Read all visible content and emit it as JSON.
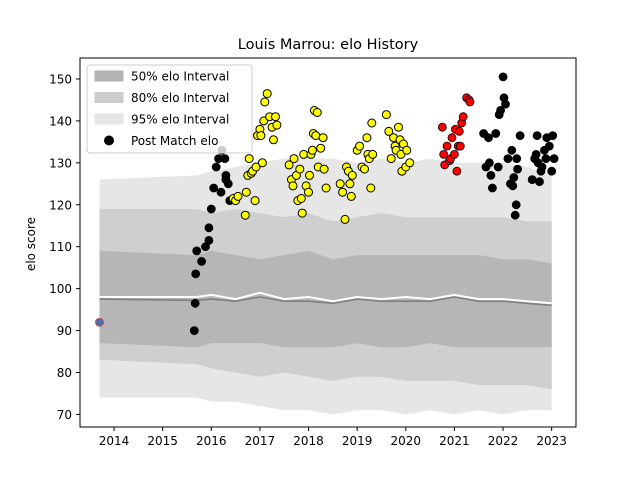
{
  "chart_data": {
    "type": "scatter",
    "title": "Louis Marrou: elo History",
    "xlabel": "",
    "ylabel": "elo score",
    "xlim": [
      2013.3,
      2023.5
    ],
    "ylim": [
      67,
      155
    ],
    "x_ticks": [
      2014,
      2015,
      2016,
      2017,
      2018,
      2019,
      2020,
      2021,
      2022,
      2023
    ],
    "y_ticks": [
      70,
      80,
      90,
      100,
      110,
      120,
      130,
      140,
      150
    ],
    "legend": {
      "position": "top-left",
      "entries": [
        {
          "label": "50% elo Interval",
          "kind": "band",
          "color": "#b3b3b3"
        },
        {
          "label": "80% elo Interval",
          "kind": "band",
          "color": "#cccccc"
        },
        {
          "label": "95% elo Interval",
          "kind": "band",
          "color": "#e6e6e6"
        },
        {
          "label": "Post Match elo",
          "kind": "marker",
          "color": "#000000"
        }
      ]
    },
    "bands": {
      "x": [
        2013.7,
        2015.7,
        2016.0,
        2016.5,
        2017.0,
        2017.5,
        2018.0,
        2018.5,
        2019.0,
        2019.5,
        2020.0,
        2020.5,
        2021.0,
        2021.5,
        2022.0,
        2022.5,
        2023.0
      ],
      "p95_upper": [
        126,
        127,
        128,
        129,
        130,
        131,
        131,
        131,
        130,
        131,
        130,
        131,
        130,
        130,
        130,
        129,
        127
      ],
      "p80_upper": [
        119,
        119,
        118,
        119,
        118,
        117,
        118,
        116,
        117,
        118,
        117,
        117,
        117,
        117,
        117,
        116,
        116
      ],
      "p50_upper": [
        109,
        108,
        109,
        108,
        107,
        108,
        109,
        107,
        108,
        108,
        108,
        108,
        108,
        108,
        107,
        107,
        106
      ],
      "median": [
        97.5,
        97.2,
        97.5,
        97.0,
        98.0,
        97.0,
        97.0,
        96.5,
        97.5,
        97.0,
        97.0,
        97.0,
        98.0,
        97.0,
        97.0,
        96.5,
        96.0
      ],
      "p50_lower": [
        87,
        86,
        87,
        87,
        87,
        86,
        86,
        86,
        87,
        86,
        86,
        87,
        86,
        86,
        86,
        86,
        86
      ],
      "p80_lower": [
        83,
        82,
        81,
        80,
        79,
        80,
        79,
        78,
        79,
        79,
        78,
        78,
        78,
        77,
        77,
        77,
        76
      ],
      "p95_lower": [
        74,
        74,
        73,
        73,
        72,
        71,
        71,
        70,
        71,
        71,
        70,
        71,
        70,
        71,
        70,
        71,
        71
      ],
      "mean_line": [
        98,
        98,
        98.5,
        97.5,
        99,
        97.5,
        98,
        97,
        98,
        97.5,
        98,
        97.5,
        98.5,
        97.5,
        97.5,
        97,
        96.5
      ]
    },
    "series": [
      {
        "color": "#000000",
        "points": [
          [
            2015.65,
            90
          ],
          [
            2015.67,
            96.5
          ],
          [
            2015.68,
            103.5
          ],
          [
            2015.7,
            109
          ],
          [
            2015.8,
            106.5
          ],
          [
            2015.88,
            110
          ],
          [
            2015.95,
            111.5
          ],
          [
            2015.95,
            114.5
          ],
          [
            2016.0,
            119
          ],
          [
            2016.05,
            124
          ],
          [
            2016.1,
            129
          ],
          [
            2016.15,
            131
          ],
          [
            2016.2,
            123
          ],
          [
            2016.22,
            133
          ],
          [
            2016.3,
            126
          ],
          [
            2016.35,
            125
          ],
          [
            2016.38,
            121
          ],
          [
            2016.28,
            131
          ],
          [
            2016.3,
            127
          ],
          [
            2021.6,
            137
          ],
          [
            2021.65,
            129
          ],
          [
            2021.7,
            136
          ],
          [
            2021.72,
            130
          ],
          [
            2021.75,
            127
          ],
          [
            2021.78,
            124
          ],
          [
            2021.85,
            137
          ],
          [
            2021.9,
            129
          ],
          [
            2021.92,
            141.5
          ],
          [
            2021.95,
            142.5
          ],
          [
            2022.0,
            150.5
          ],
          [
            2022.02,
            145.5
          ],
          [
            2022.05,
            144
          ],
          [
            2022.1,
            131
          ],
          [
            2022.15,
            125
          ],
          [
            2022.18,
            133
          ],
          [
            2022.22,
            126.5
          ],
          [
            2022.25,
            117.5
          ],
          [
            2022.27,
            120
          ],
          [
            2022.28,
            131
          ],
          [
            2022.3,
            128.5
          ],
          [
            2022.35,
            136.5
          ],
          [
            2022.2,
            124.5
          ],
          [
            2022.6,
            126
          ],
          [
            2022.65,
            131
          ],
          [
            2022.68,
            132
          ],
          [
            2022.7,
            136.5
          ],
          [
            2022.75,
            125.5
          ],
          [
            2022.78,
            128
          ],
          [
            2022.8,
            129
          ],
          [
            2022.85,
            133
          ],
          [
            2022.88,
            131
          ],
          [
            2022.9,
            136
          ],
          [
            2022.95,
            134
          ],
          [
            2023.0,
            128
          ],
          [
            2023.02,
            136.5
          ],
          [
            2023.05,
            131
          ],
          [
            2022.72,
            130
          ]
        ]
      },
      {
        "color": "#ffff00",
        "points": [
          [
            2016.45,
            121.5
          ],
          [
            2016.5,
            121
          ],
          [
            2016.55,
            122
          ],
          [
            2016.7,
            117.5
          ],
          [
            2016.72,
            123
          ],
          [
            2016.75,
            127
          ],
          [
            2016.78,
            131
          ],
          [
            2016.82,
            127.5
          ],
          [
            2016.85,
            128
          ],
          [
            2016.9,
            121
          ],
          [
            2016.92,
            129
          ],
          [
            2016.95,
            136.5
          ],
          [
            2017.0,
            138
          ],
          [
            2017.02,
            136.5
          ],
          [
            2017.05,
            130
          ],
          [
            2017.08,
            140
          ],
          [
            2017.1,
            144.5
          ],
          [
            2017.15,
            146.5
          ],
          [
            2017.2,
            141
          ],
          [
            2017.25,
            138.5
          ],
          [
            2017.28,
            135.5
          ],
          [
            2017.32,
            141
          ],
          [
            2017.35,
            139
          ],
          [
            2017.6,
            129.5
          ],
          [
            2017.65,
            126
          ],
          [
            2017.68,
            124.5
          ],
          [
            2017.7,
            131
          ],
          [
            2017.75,
            127
          ],
          [
            2017.78,
            121
          ],
          [
            2017.82,
            128.5
          ],
          [
            2017.85,
            121.5
          ],
          [
            2017.9,
            132
          ],
          [
            2017.95,
            124.5
          ],
          [
            2018.0,
            123
          ],
          [
            2018.02,
            127
          ],
          [
            2018.05,
            132
          ],
          [
            2018.08,
            133
          ],
          [
            2018.1,
            137
          ],
          [
            2018.12,
            142.5
          ],
          [
            2018.15,
            136.5
          ],
          [
            2018.18,
            142
          ],
          [
            2018.2,
            129
          ],
          [
            2018.25,
            133.5
          ],
          [
            2018.3,
            136
          ],
          [
            2018.32,
            128.5
          ],
          [
            2018.36,
            124
          ],
          [
            2017.87,
            118
          ],
          [
            2018.65,
            125
          ],
          [
            2018.7,
            123
          ],
          [
            2018.75,
            116.5
          ],
          [
            2018.78,
            129
          ],
          [
            2018.82,
            128
          ],
          [
            2018.85,
            125
          ],
          [
            2018.88,
            122
          ],
          [
            2018.9,
            127
          ],
          [
            2019.0,
            133
          ],
          [
            2019.05,
            134
          ],
          [
            2019.1,
            129
          ],
          [
            2019.15,
            128.5
          ],
          [
            2019.2,
            136
          ],
          [
            2019.22,
            132
          ],
          [
            2019.25,
            131
          ],
          [
            2019.28,
            124
          ],
          [
            2019.3,
            139.5
          ],
          [
            2019.32,
            132
          ],
          [
            2019.6,
            141.5
          ],
          [
            2019.65,
            137.5
          ],
          [
            2019.7,
            131
          ],
          [
            2019.75,
            136
          ],
          [
            2019.78,
            134
          ],
          [
            2019.8,
            133
          ],
          [
            2019.85,
            138.5
          ],
          [
            2019.88,
            135.5
          ],
          [
            2019.9,
            132
          ],
          [
            2019.92,
            128
          ],
          [
            2019.95,
            134.5
          ],
          [
            2020.0,
            129
          ],
          [
            2020.02,
            133
          ],
          [
            2020.08,
            130
          ]
        ]
      },
      {
        "color": "#ff0000",
        "points": [
          [
            2020.75,
            138.5
          ],
          [
            2020.78,
            132
          ],
          [
            2020.8,
            129.5
          ],
          [
            2020.85,
            134
          ],
          [
            2020.9,
            130.5
          ],
          [
            2020.92,
            131
          ],
          [
            2020.95,
            136
          ],
          [
            2021.0,
            132
          ],
          [
            2021.02,
            138
          ],
          [
            2021.05,
            128
          ],
          [
            2021.08,
            134
          ],
          [
            2021.1,
            137.5
          ],
          [
            2021.12,
            134
          ],
          [
            2021.15,
            139.5
          ],
          [
            2021.18,
            141
          ],
          [
            2021.25,
            145.5
          ],
          [
            2021.3,
            145
          ],
          [
            2021.32,
            144.5
          ]
        ]
      },
      {
        "color": "#4a6fb5",
        "points": [
          [
            2013.7,
            92
          ]
        ]
      }
    ]
  }
}
